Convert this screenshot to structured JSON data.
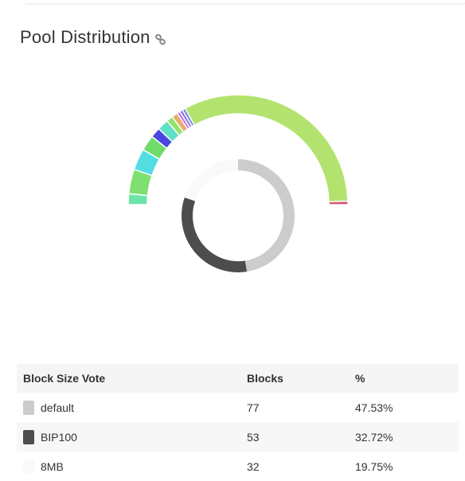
{
  "page": {
    "title": "Pool Distribution"
  },
  "chart_data": [
    {
      "type": "pie",
      "name": "pool-distribution-outer",
      "start_angle_deg": -90,
      "end_angle_deg": 90,
      "slices": [
        {
          "value": 3.2,
          "color": "#6ee3a8"
        },
        {
          "value": 7.2,
          "color": "#7ee06e"
        },
        {
          "value": 6.3,
          "color": "#52dde3"
        },
        {
          "value": 4.6,
          "color": "#6fdc6a"
        },
        {
          "value": 3.0,
          "color": "#4a46e0"
        },
        {
          "value": 3.3,
          "color": "#5fe0c6"
        },
        {
          "value": 1.9,
          "color": "#92e26e"
        },
        {
          "value": 1.8,
          "color": "#e3b06e"
        },
        {
          "value": 0.9,
          "color": "#c86ee3"
        },
        {
          "value": 0.9,
          "color": "#8a6ee3"
        },
        {
          "value": 0.9,
          "color": "#6e8ae3"
        },
        {
          "value": 65.0,
          "color": "#b3e36e"
        },
        {
          "value": 1.0,
          "color": "#d6506a"
        }
      ]
    },
    {
      "type": "pie",
      "name": "block-size-vote-inner",
      "start_angle_deg": 0,
      "end_angle_deg": 360,
      "slices": [
        {
          "label": "default",
          "value": 77,
          "color": "#cccccc"
        },
        {
          "label": "BIP100",
          "value": 53,
          "color": "#4d4d4d"
        },
        {
          "label": "8MB",
          "value": 32,
          "color": "#f9f9f9"
        }
      ]
    }
  ],
  "table": {
    "headers": {
      "vote": "Block Size Vote",
      "blocks": "Blocks",
      "percent": "%"
    },
    "rows": [
      {
        "vote": "default",
        "blocks": "77",
        "percent": "47.53%",
        "color": "#cccccc"
      },
      {
        "vote": "BIP100",
        "blocks": "53",
        "percent": "32.72%",
        "color": "#4d4d4d"
      },
      {
        "vote": "8MB",
        "blocks": "32",
        "percent": "19.75%",
        "color": "#f9f9f9"
      }
    ]
  }
}
